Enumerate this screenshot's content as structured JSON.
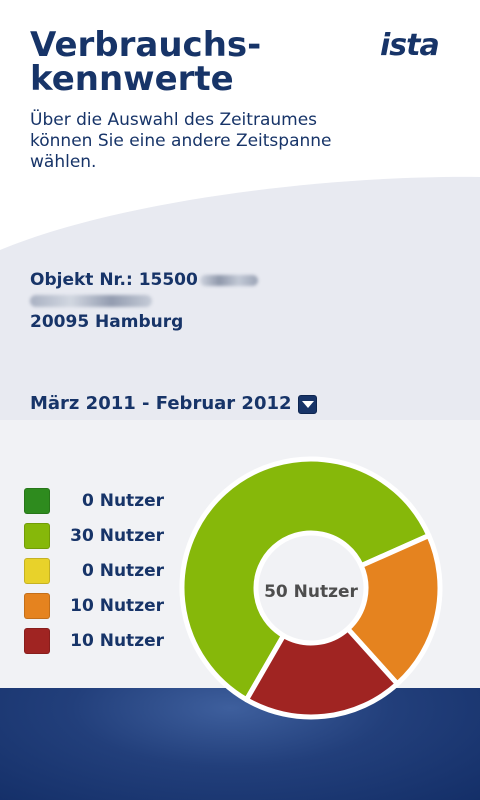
{
  "header": {
    "title_line1": "Verbrauchs-",
    "title_line2": "kennwerte",
    "logo": "ista",
    "intro": "Über die Auswahl des Zeitraumes können Sie eine andere Zeitspanne wählen."
  },
  "object": {
    "number_label": "Objekt Nr.: 15500",
    "city_line": "20095 Hamburg"
  },
  "period": {
    "selected": "März 2011 - Februar 2012",
    "icon": "dropdown-arrow-icon"
  },
  "chart_data": {
    "type": "pie",
    "title": "",
    "center_label": "50 Nutzer",
    "categories": [
      "0 Nutzer",
      "30 Nutzer",
      "0 Nutzer",
      "10 Nutzer",
      "10 Nutzer"
    ],
    "values": [
      0,
      30,
      0,
      10,
      10
    ],
    "colors": [
      "#2e8b1e",
      "#86b80a",
      "#e8d22a",
      "#e5831f",
      "#a02422"
    ],
    "legend_position": "left"
  },
  "colors": {
    "brand_blue": "#173468",
    "panel_gray": "#f1f2f5",
    "band_gray": "#e8eaf1"
  }
}
